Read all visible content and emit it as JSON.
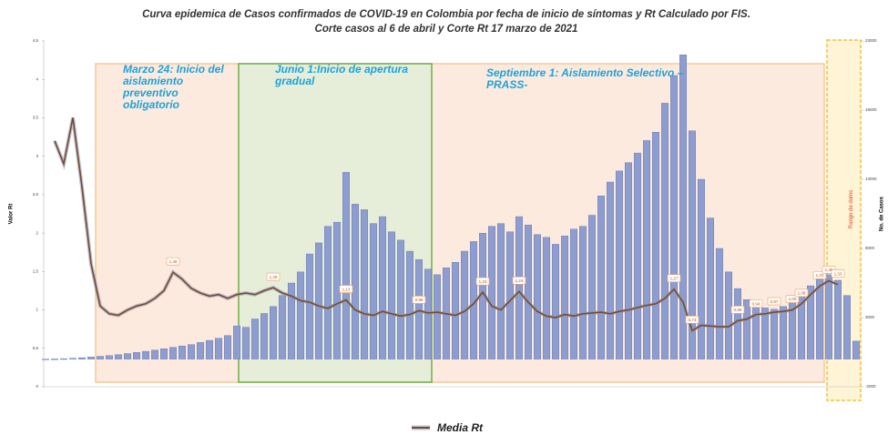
{
  "chart_data": {
    "type": "bar-line",
    "title": "Curva epidemica de Casos confirmados de COVID-19 en Colombia por fecha de inicio de síntomas y Rt Calculado por FIS.",
    "subtitle": "Corte casos al 6 de abril y Corte Rt 17 marzo de 2021",
    "y_label": "Valor Rt",
    "y2_label": "No. de Casos",
    "ylim": [
      0,
      4.5
    ],
    "yticks": [
      0,
      {
        "value": 0.5,
        "label": "0,5"
      },
      1,
      {
        "value": 1.5,
        "label": "1,5"
      },
      2,
      {
        "value": 2.5,
        "label": "2,5"
      },
      3,
      {
        "value": 3.5,
        "label": "3,5"
      },
      4,
      {
        "value": 4.5,
        "label": "4,5"
      }
    ],
    "y2lim": [
      -2000,
      23000
    ],
    "y2ticks": [
      -2000,
      3000,
      8000,
      13000,
      18000,
      23000
    ],
    "series": [
      {
        "type": "bar",
        "axis": "y2",
        "color": "#8e9dd0",
        "values": [
          0,
          10,
          30,
          60,
          100,
          150,
          200,
          250,
          320,
          400,
          480,
          560,
          650,
          750,
          850,
          950,
          1050,
          1200,
          1350,
          1500,
          1700,
          2400,
          2300,
          2900,
          3300,
          3800,
          4600,
          5500,
          6300,
          7600,
          8400,
          9600,
          9900,
          13500,
          11200,
          10800,
          9800,
          10300,
          9200,
          8600,
          7800,
          7200,
          6500,
          6100,
          6600,
          7000,
          7800,
          8500,
          9100,
          9600,
          9800,
          9200,
          10300,
          9700,
          9000,
          8800,
          8300,
          8900,
          9400,
          9600,
          10400,
          11800,
          12800,
          13600,
          14200,
          14900,
          15800,
          16400,
          18500,
          20500,
          22000,
          16500,
          13000,
          10200,
          8000,
          6300,
          5100,
          4300,
          3900,
          3700,
          3600,
          3800,
          4300,
          4800,
          5300,
          6200,
          6100,
          5700,
          4600,
          1300
        ]
      },
      {
        "type": "line",
        "name": "Media Rt",
        "color": "#7a4a2a",
        "values": [
          null,
          3.2,
          2.9,
          3.5,
          2.6,
          1.6,
          1.05,
          0.95,
          0.93,
          1.0,
          1.05,
          1.08,
          1.15,
          1.25,
          1.49,
          1.4,
          1.28,
          1.22,
          1.18,
          1.2,
          1.15,
          1.2,
          1.22,
          1.2,
          1.25,
          1.29,
          1.22,
          1.18,
          1.12,
          1.1,
          1.05,
          1.02,
          1.08,
          1.13,
          1.0,
          0.95,
          0.93,
          0.98,
          0.95,
          0.92,
          0.94,
          0.99,
          0.96,
          0.97,
          0.95,
          0.93,
          0.98,
          1.08,
          1.23,
          1.05,
          1.0,
          1.12,
          1.24,
          1.1,
          0.98,
          0.92,
          0.9,
          0.94,
          0.92,
          0.95,
          0.96,
          0.97,
          0.95,
          0.98,
          1.0,
          1.03,
          1.06,
          1.08,
          1.15,
          1.27,
          1.1,
          0.73,
          0.8,
          0.79,
          0.78,
          0.78,
          0.86,
          0.88,
          0.94,
          0.95,
          0.97,
          0.98,
          1.0,
          1.08,
          1.2,
          1.31,
          1.38,
          1.33,
          null,
          null
        ],
        "value_labels": [
          null,
          null,
          null,
          null,
          null,
          null,
          null,
          null,
          null,
          null,
          null,
          null,
          null,
          null,
          "1,49",
          null,
          null,
          null,
          null,
          null,
          null,
          null,
          null,
          null,
          null,
          "1,29",
          null,
          null,
          null,
          null,
          null,
          null,
          null,
          "1,13",
          null,
          null,
          null,
          null,
          null,
          null,
          null,
          "0,99",
          null,
          null,
          null,
          null,
          null,
          null,
          "1,23",
          null,
          null,
          null,
          "1,24",
          null,
          null,
          null,
          null,
          null,
          null,
          null,
          null,
          null,
          null,
          null,
          null,
          null,
          null,
          null,
          null,
          "1,27",
          null,
          "0,73",
          null,
          null,
          null,
          null,
          "0,86",
          null,
          "0,94",
          null,
          "0,97",
          null,
          "1,00",
          "1,08",
          null,
          "1,31",
          "1,38",
          "1,33",
          null,
          null
        ]
      }
    ],
    "annotations": [
      {
        "text": "Marzo 24: Inicio del aislamiento preventivo obligatorio",
        "start": 5.5,
        "end": 85.5,
        "color": "#fbe5d6"
      },
      {
        "text": "Junio 1:Inicio de apertura gradual",
        "start": 21.2,
        "end": 42.4,
        "color": "#e2efd9"
      },
      {
        "text": "Septiembre 1: Aislamiento Selectivo –PRASS-",
        "start": 42.4,
        "end": 85.5,
        "color": "#fbe5d6"
      },
      {
        "text": "Rango de datos",
        "start": 85.8,
        "end": 89.5,
        "color": "#fff2cc"
      }
    ]
  }
}
